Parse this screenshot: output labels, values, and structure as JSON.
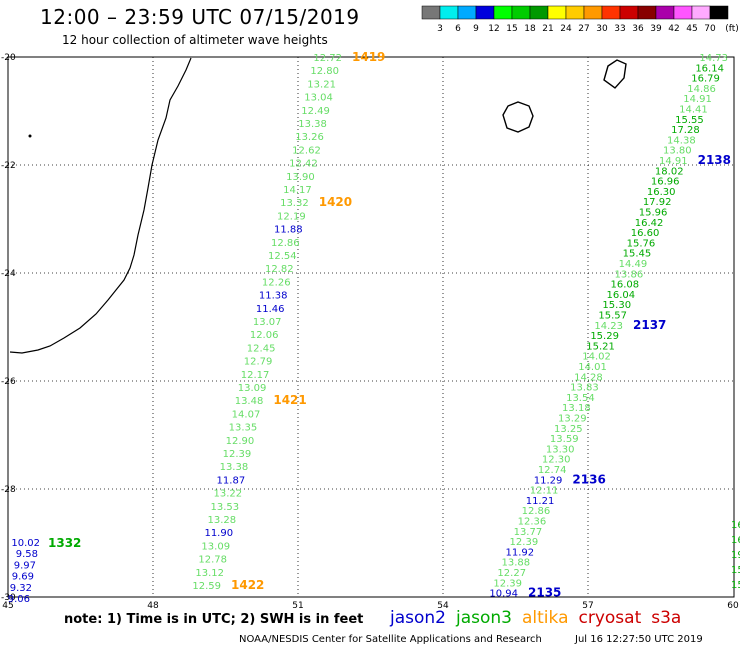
{
  "header": {
    "title": "12:00 – 23:59 UTC 07/15/2019",
    "subtitle": "12 hour collection of altimeter wave heights"
  },
  "colorbar": {
    "unit": "(ft)",
    "ticks": [
      "3",
      "6",
      "9",
      "12",
      "15",
      "18",
      "21",
      "24",
      "27",
      "30",
      "33",
      "36",
      "39",
      "42",
      "45",
      "70"
    ],
    "colors": [
      "#777777",
      "#00eeee",
      "#00aaff",
      "#0000dd",
      "#00ff00",
      "#00cc00",
      "#009900",
      "#ffff00",
      "#ffcc00",
      "#ff9900",
      "#ff3300",
      "#cc0000",
      "#880000",
      "#aa00aa",
      "#ff55ff",
      "#ffaaff",
      "#000000"
    ]
  },
  "axes": {
    "lon_ticks": [
      "45",
      "48",
      "51",
      "54",
      "57",
      "60"
    ],
    "lat_ticks": [
      "-20",
      "-22",
      "-24",
      "-26",
      "-28",
      "-30"
    ]
  },
  "tracks": {
    "left": [
      {
        "v": "12.72",
        "c": "#66dd66"
      },
      {
        "v": "12.80",
        "c": "#66dd66"
      },
      {
        "v": "13.21",
        "c": "#66dd66"
      },
      {
        "v": "13.04",
        "c": "#66dd66"
      },
      {
        "v": "12.49",
        "c": "#66dd66"
      },
      {
        "v": "13.38",
        "c": "#66dd66"
      },
      {
        "v": "13.26",
        "c": "#66dd66"
      },
      {
        "v": "12.62",
        "c": "#66dd66"
      },
      {
        "v": "12.42",
        "c": "#66dd66"
      },
      {
        "v": "13.90",
        "c": "#66dd66"
      },
      {
        "v": "14.17",
        "c": "#66dd66"
      },
      {
        "v": "13.32",
        "c": "#66dd66"
      },
      {
        "v": "12.19",
        "c": "#66dd66"
      },
      {
        "v": "11.88",
        "c": "#0000cc"
      },
      {
        "v": "12.86",
        "c": "#66dd66"
      },
      {
        "v": "12.54",
        "c": "#66dd66"
      },
      {
        "v": "12.82",
        "c": "#66dd66"
      },
      {
        "v": "12.26",
        "c": "#66dd66"
      },
      {
        "v": "11.38",
        "c": "#0000cc"
      },
      {
        "v": "11.46",
        "c": "#0000cc"
      },
      {
        "v": "13.07",
        "c": "#66dd66"
      },
      {
        "v": "12.06",
        "c": "#66dd66"
      },
      {
        "v": "12.45",
        "c": "#66dd66"
      },
      {
        "v": "12.79",
        "c": "#66dd66"
      },
      {
        "v": "12.17",
        "c": "#66dd66"
      },
      {
        "v": "13.09",
        "c": "#66dd66"
      },
      {
        "v": "13.48",
        "c": "#66dd66"
      },
      {
        "v": "14.07",
        "c": "#66dd66"
      },
      {
        "v": "13.35",
        "c": "#66dd66"
      },
      {
        "v": "12.90",
        "c": "#66dd66"
      },
      {
        "v": "12.39",
        "c": "#66dd66"
      },
      {
        "v": "13.38",
        "c": "#66dd66"
      },
      {
        "v": "11.87",
        "c": "#0000cc"
      },
      {
        "v": "13.22",
        "c": "#66dd66"
      },
      {
        "v": "13.53",
        "c": "#66dd66"
      },
      {
        "v": "13.28",
        "c": "#66dd66"
      },
      {
        "v": "11.90",
        "c": "#0000cc"
      },
      {
        "v": "13.09",
        "c": "#66dd66"
      },
      {
        "v": "12.78",
        "c": "#66dd66"
      },
      {
        "v": "13.12",
        "c": "#66dd66"
      },
      {
        "v": "12.59",
        "c": "#66dd66"
      }
    ],
    "left_times": [
      {
        "t": "1419",
        "c": "#ff9900",
        "row": 0
      },
      {
        "t": "1420",
        "c": "#ff9900",
        "row": 11
      },
      {
        "t": "1421",
        "c": "#ff9900",
        "row": 26
      },
      {
        "t": "1422",
        "c": "#ff9900",
        "row": 40
      }
    ],
    "right": [
      {
        "v": "14.73",
        "c": "#66dd66"
      },
      {
        "v": "16.14",
        "c": "#00aa00"
      },
      {
        "v": "16.79",
        "c": "#00aa00"
      },
      {
        "v": "14.86",
        "c": "#66dd66"
      },
      {
        "v": "14.91",
        "c": "#66dd66"
      },
      {
        "v": "14.41",
        "c": "#66dd66"
      },
      {
        "v": "15.55",
        "c": "#00aa00"
      },
      {
        "v": "17.28",
        "c": "#00aa00"
      },
      {
        "v": "14.38",
        "c": "#66dd66"
      },
      {
        "v": "13.80",
        "c": "#66dd66"
      },
      {
        "v": "14.91",
        "c": "#66dd66"
      },
      {
        "v": "18.02",
        "c": "#00aa00"
      },
      {
        "v": "16.96",
        "c": "#00aa00"
      },
      {
        "v": "16.30",
        "c": "#00aa00"
      },
      {
        "v": "17.92",
        "c": "#00aa00"
      },
      {
        "v": "15.96",
        "c": "#00aa00"
      },
      {
        "v": "16.42",
        "c": "#00aa00"
      },
      {
        "v": "16.60",
        "c": "#00aa00"
      },
      {
        "v": "15.76",
        "c": "#00aa00"
      },
      {
        "v": "15.45",
        "c": "#00aa00"
      },
      {
        "v": "14.49",
        "c": "#66dd66"
      },
      {
        "v": "13.86",
        "c": "#66dd66"
      },
      {
        "v": "16.08",
        "c": "#00aa00"
      },
      {
        "v": "16.04",
        "c": "#00aa00"
      },
      {
        "v": "15.30",
        "c": "#00aa00"
      },
      {
        "v": "15.57",
        "c": "#00aa00"
      },
      {
        "v": "14.23",
        "c": "#66dd66"
      },
      {
        "v": "15.29",
        "c": "#00aa00"
      },
      {
        "v": "15.21",
        "c": "#00aa00"
      },
      {
        "v": "14.02",
        "c": "#66dd66"
      },
      {
        "v": "14.01",
        "c": "#66dd66"
      },
      {
        "v": "14.28",
        "c": "#66dd66"
      },
      {
        "v": "13.83",
        "c": "#66dd66"
      },
      {
        "v": "13.54",
        "c": "#66dd66"
      },
      {
        "v": "13.18",
        "c": "#66dd66"
      },
      {
        "v": "13.29",
        "c": "#66dd66"
      },
      {
        "v": "13.25",
        "c": "#66dd66"
      },
      {
        "v": "13.59",
        "c": "#66dd66"
      },
      {
        "v": "13.30",
        "c": "#66dd66"
      },
      {
        "v": "12.30",
        "c": "#66dd66"
      },
      {
        "v": "12.74",
        "c": "#66dd66"
      },
      {
        "v": "11.29",
        "c": "#0000cc"
      },
      {
        "v": "12.11",
        "c": "#66dd66"
      },
      {
        "v": "11.21",
        "c": "#0000cc"
      },
      {
        "v": "12.86",
        "c": "#66dd66"
      },
      {
        "v": "12.36",
        "c": "#66dd66"
      },
      {
        "v": "13.77",
        "c": "#66dd66"
      },
      {
        "v": "12.39",
        "c": "#66dd66"
      },
      {
        "v": "11.92",
        "c": "#0000cc"
      },
      {
        "v": "13.88",
        "c": "#66dd66"
      },
      {
        "v": "12.27",
        "c": "#66dd66"
      },
      {
        "v": "12.39",
        "c": "#66dd66"
      },
      {
        "v": "10.94",
        "c": "#0000cc"
      }
    ],
    "right_times": [
      {
        "t": "2138",
        "c": "#0000cc"
      },
      {
        "t": "2137",
        "c": "#0000cc"
      },
      {
        "t": "2136",
        "c": "#0000cc"
      },
      {
        "t": "2135",
        "c": "#0000cc"
      }
    ],
    "corner": [
      {
        "v": "10.02",
        "c": "#0000cc"
      },
      {
        "v": "9.58",
        "c": "#0000cc"
      },
      {
        "v": "9.97",
        "c": "#0000cc"
      },
      {
        "v": "9.69",
        "c": "#0000cc"
      },
      {
        "v": "9.32",
        "c": "#0000cc"
      },
      {
        "v": "9.06",
        "c": "#0000cc"
      }
    ],
    "corner_time": {
      "t": "1332",
      "c": "#00aa00"
    },
    "edge": [
      {
        "v": "16",
        "c": "#00aa00"
      },
      {
        "v": "16",
        "c": "#00aa00"
      },
      {
        "v": "19",
        "c": "#00aa00"
      },
      {
        "v": "15",
        "c": "#00aa00"
      },
      {
        "v": "15",
        "c": "#00aa00"
      }
    ]
  },
  "footer": {
    "note": "note:  1) Time is in UTC;  2) SWH is in feet",
    "satellites": [
      {
        "name": "jason2",
        "color": "#0000cc"
      },
      {
        "name": "jason3",
        "color": "#00aa00"
      },
      {
        "name": "altika",
        "color": "#ff9900"
      },
      {
        "name": "cryosat",
        "color": "#cc0000"
      },
      {
        "name": "s3a",
        "color": "#cc0000"
      }
    ],
    "credit": "NOAA/NESDIS Center for Satellite Applications and Research",
    "timestamp": "Jul 16 12:27:50 UTC 2019"
  }
}
